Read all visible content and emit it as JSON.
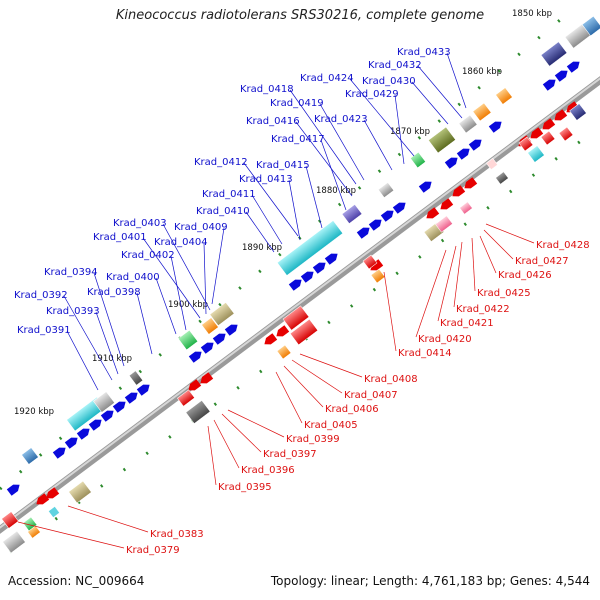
{
  "title": "Kineococcus radiotolerans SRS30216, complete genome",
  "accession": "Accession: NC_009664",
  "topology_summary": "Topology: linear; Length: 4,761,183 bp; Genes: 4,544",
  "colors": {
    "forward_label": "#1010cc",
    "reverse_label": "#dd1111",
    "backbone": "#8c8c8c",
    "tick": "#2e8b2e"
  },
  "scale_labels": [
    "1850 kbp",
    "1860 kbp",
    "1870 kbp",
    "1880 kbp",
    "1890 kbp",
    "1900 kbp",
    "1910 kbp",
    "1920 kbp"
  ],
  "forward_genes": [
    "Krad_0433",
    "Krad_0432",
    "Krad_0430",
    "Krad_0424",
    "Krad_0429",
    "Krad_0418",
    "Krad_0419",
    "Krad_0423",
    "Krad_0416",
    "Krad_0417",
    "Krad_0412",
    "Krad_0415",
    "Krad_0413",
    "Krad_0411",
    "Krad_0410",
    "Krad_0409",
    "Krad_0403",
    "Krad_0401",
    "Krad_0404",
    "Krad_0402",
    "Krad_0400",
    "Krad_0394",
    "Krad_0398",
    "Krad_0392",
    "Krad_0393",
    "Krad_0391"
  ],
  "reverse_genes": [
    "Krad_0428",
    "Krad_0427",
    "Krad_0426",
    "Krad_0425",
    "Krad_0422",
    "Krad_0421",
    "Krad_0420",
    "Krad_0414",
    "Krad_0408",
    "Krad_0407",
    "Krad_0406",
    "Krad_0405",
    "Krad_0399",
    "Krad_0397",
    "Krad_0396",
    "Krad_0395",
    "Krad_0383",
    "Krad_0379"
  ]
}
